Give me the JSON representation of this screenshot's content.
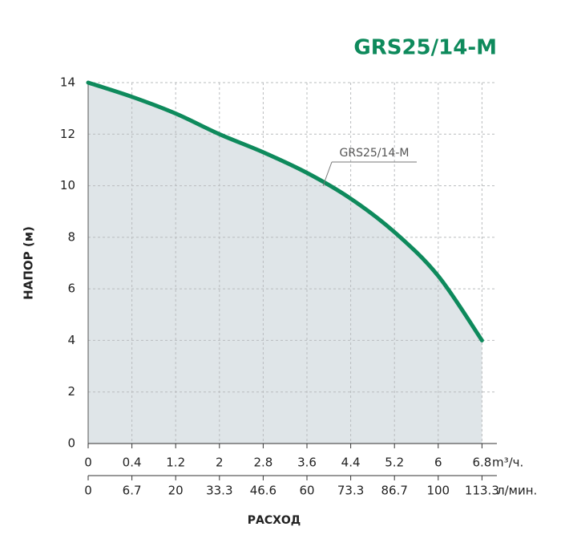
{
  "chart_data": {
    "type": "line",
    "title": "GRS25/14-M",
    "y_label": "НАПОР (м)",
    "x_label": "РАСХОД",
    "x_unit": "m³/ч.",
    "x2_unit": "л/мин.",
    "categories": [
      "0",
      "0.4",
      "1.2",
      "2",
      "2.8",
      "3.6",
      "4.4",
      "5.2",
      "6",
      "6.8"
    ],
    "categories2": [
      "0",
      "6.7",
      "20",
      "33.3",
      "46.6",
      "60",
      "73.3",
      "86.7",
      "100",
      "113.3"
    ],
    "series": [
      {
        "name": "GRS25/14-M",
        "color": "#0e8a5c",
        "values": [
          14,
          13.45,
          12.8,
          12.0,
          11.3,
          10.5,
          9.5,
          8.2,
          6.5,
          4
        ]
      }
    ],
    "ylim": [
      0,
      14
    ],
    "yticks": [
      0,
      2,
      4,
      6,
      8,
      10,
      12,
      14
    ],
    "grid": true,
    "fill_color": "#dfe5e8"
  }
}
